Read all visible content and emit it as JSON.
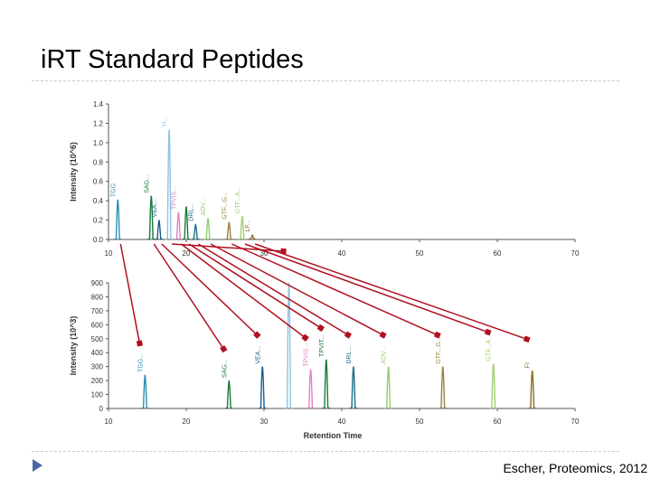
{
  "slide": {
    "title": "iRT Standard Peptides",
    "citation": "Escher, Proteomics, 2012"
  },
  "colors": {
    "rule": "#c8c8c8",
    "arrow": "#b01020",
    "bullet": "#4a66a8",
    "axis": "#555555"
  },
  "chart_data": [
    {
      "type": "line",
      "panel": "top",
      "xlim": [
        10,
        70
      ],
      "x_ticks": [
        "10",
        "20",
        "30",
        "40",
        "50",
        "60",
        "70"
      ],
      "ylim": [
        0,
        1.4
      ],
      "y_ticks": [
        "0.0",
        "0.2",
        "0.4",
        "0.6",
        "0.8",
        "1.0",
        "1.2",
        "1.4"
      ],
      "ylabel": "Intensity (10^6)",
      "xlabel": "",
      "grid": false,
      "series": [
        {
          "name": "TGG",
          "x": 11.2,
          "y": 0.41,
          "color": "#2a8fb0"
        },
        {
          "name": "SAG...",
          "x": 15.5,
          "y": 0.45,
          "color": "#1a7a3a"
        },
        {
          "name": "VEA...",
          "x": 16.5,
          "y": 0.2,
          "color": "#1a5e8a"
        },
        {
          "name": "YI...",
          "x": 17.8,
          "y": 1.13,
          "color": "#8fc3e0"
        },
        {
          "name": "TPVIS...",
          "x": 19.0,
          "y": 0.28,
          "color": "#e080c0"
        },
        {
          "name": "",
          "x": 20.0,
          "y": 0.34,
          "color": "#1a7a3a"
        },
        {
          "name": "DRL...",
          "x": 21.2,
          "y": 0.16,
          "color": "#1a6e8a"
        },
        {
          "name": "ADV...",
          "x": 22.8,
          "y": 0.22,
          "color": "#8fcf70"
        },
        {
          "name": "GTF...G...",
          "x": 25.5,
          "y": 0.18,
          "color": "#9a8040"
        },
        {
          "name": "GTF...A...",
          "x": 27.2,
          "y": 0.24,
          "color": "#a0d070"
        },
        {
          "name": "LF...",
          "x": 28.5,
          "y": 0.05,
          "color": "#8a6a20"
        }
      ]
    },
    {
      "type": "line",
      "panel": "bottom",
      "xlim": [
        10,
        70
      ],
      "x_ticks": [
        "10",
        "20",
        "30",
        "40",
        "50",
        "60",
        "70"
      ],
      "ylim": [
        0,
        900
      ],
      "y_ticks": [
        "0",
        "100",
        "200",
        "300",
        "400",
        "500",
        "600",
        "700",
        "800",
        "900"
      ],
      "ylabel": "Intensity (10^3)",
      "xlabel": "Retention Time",
      "grid": false,
      "series": [
        {
          "name": "TGG...",
          "x": 14.7,
          "y": 240,
          "color": "#2a8fb0"
        },
        {
          "name": "SAG...",
          "x": 25.5,
          "y": 200,
          "color": "#1a7a3a"
        },
        {
          "name": "VEA...",
          "x": 29.8,
          "y": 300,
          "color": "#1a5e8a"
        },
        {
          "name": "",
          "x": 33.2,
          "y": 900,
          "color": "#8fc3e0"
        },
        {
          "name": "TPVIS...",
          "x": 36.0,
          "y": 280,
          "color": "#e080c0"
        },
        {
          "name": "TPVIT...",
          "x": 38.0,
          "y": 350,
          "color": "#1a7a3a"
        },
        {
          "name": "DRL...",
          "x": 41.5,
          "y": 300,
          "color": "#1a6e8a"
        },
        {
          "name": "ADV...",
          "x": 46.0,
          "y": 300,
          "color": "#8fcf70"
        },
        {
          "name": "GTF...G...",
          "x": 53.0,
          "y": 300,
          "color": "#9a8040"
        },
        {
          "name": "GTF...A...",
          "x": 59.5,
          "y": 320,
          "color": "#a0d070"
        },
        {
          "name": "FI",
          "x": 64.5,
          "y": 270,
          "color": "#8a6a20"
        }
      ]
    }
  ]
}
